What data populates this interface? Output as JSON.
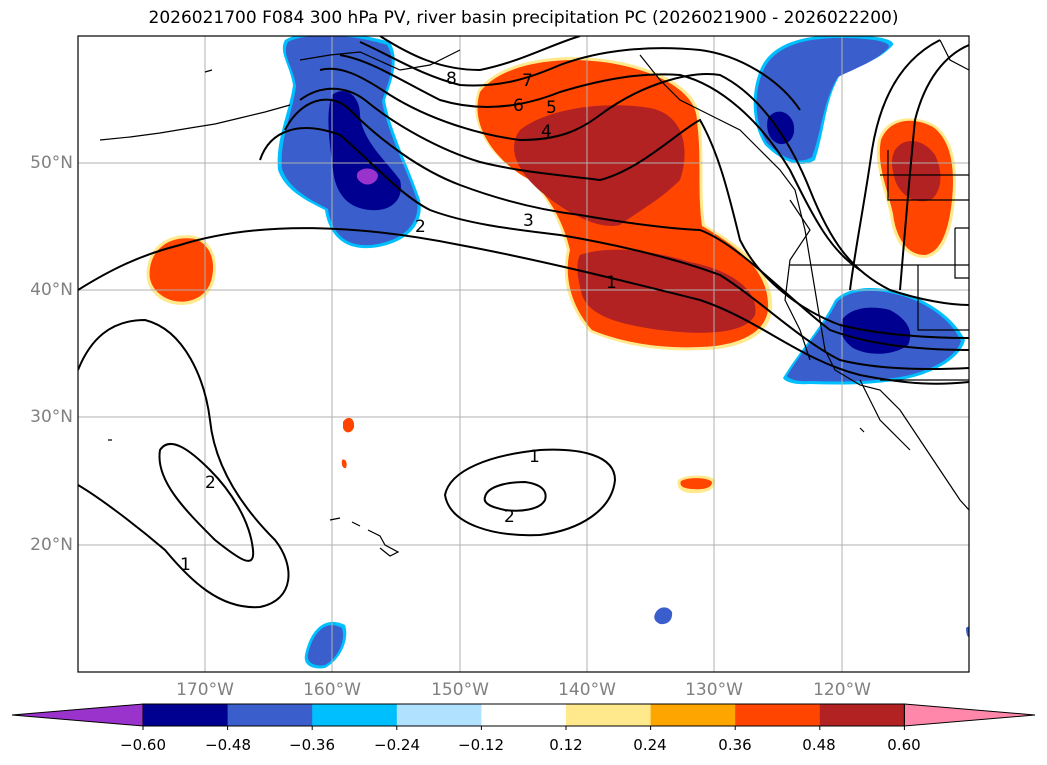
{
  "title": "2026021700 F084 300 hPa PV, river basin precipitation PC (2026021900 - 2026022200)",
  "longitude_labels": [
    "170°W",
    "160°W",
    "150°W",
    "140°W",
    "130°W",
    "120°W"
  ],
  "latitude_labels": [
    "50°N",
    "40°N",
    "30°N",
    "20°N"
  ],
  "contour_labels": [
    "1",
    "2",
    "3",
    "4",
    "5",
    "6",
    "7",
    "8",
    "1",
    "2",
    "1",
    "2"
  ],
  "colorbar": {
    "tick_labels": [
      "−0.60",
      "−0.48",
      "−0.36",
      "−0.24",
      "−0.12",
      "0.12",
      "0.24",
      "0.36",
      "0.48",
      "0.60"
    ],
    "colors": [
      "#9933cc",
      "#000090",
      "#3a5fcd",
      "#00bfff",
      "#b0e2ff",
      "#ffffff",
      "#ffe98c",
      "#ffa500",
      "#ff4500",
      "#b22222",
      "#ff88aa"
    ]
  }
}
